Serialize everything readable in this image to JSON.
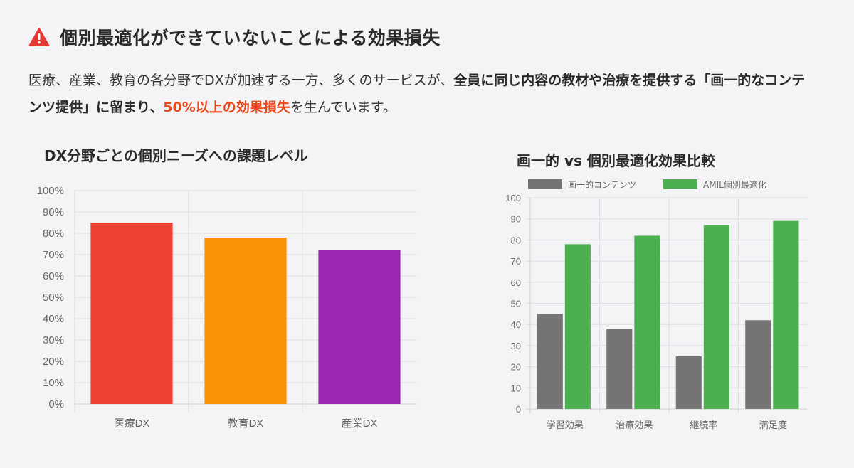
{
  "header": {
    "title": "個別最適化ができていないことによる効果損失",
    "icon": "warning-triangle-icon",
    "icon_color": "#e53935"
  },
  "description": {
    "part1": "医療、産業、教育の各分野でDXが加速する一方、多くのサービスが、",
    "part2": "全員に同じ内容の教材や治療を提供する「画一的なコンテンツ提供」に留まり、",
    "part3": "50%以上の効果損失",
    "part4": "を生んでいます。",
    "highlight_color": "#e8491d"
  },
  "chart_data": [
    {
      "type": "bar",
      "title": "DX分野ごとの個別ニーズへの課題レベル",
      "categories": [
        "医療DX",
        "教育DX",
        "産業DX"
      ],
      "values": [
        85,
        78,
        72
      ],
      "colors": [
        "#ee4035",
        "#f89406",
        "#9c27b0"
      ],
      "yticks": [
        "0%",
        "10%",
        "20%",
        "30%",
        "40%",
        "50%",
        "60%",
        "70%",
        "80%",
        "90%",
        "100%"
      ],
      "ylim": [
        0,
        100
      ],
      "grid": true
    },
    {
      "type": "bar",
      "title": "画一的 vs 個別最適化効果比較",
      "categories": [
        "学習効果",
        "治療効果",
        "継続率",
        "満足度"
      ],
      "series": [
        {
          "name": "画一的コンテンツ",
          "values": [
            45,
            38,
            25,
            42
          ],
          "color": "#757374"
        },
        {
          "name": "AMIL個別最適化",
          "values": [
            78,
            82,
            87,
            89
          ],
          "color": "#4caf50"
        }
      ],
      "yticks": [
        "0",
        "10",
        "20",
        "30",
        "40",
        "50",
        "60",
        "70",
        "80",
        "90",
        "100"
      ],
      "ylim": [
        0,
        100
      ],
      "legend": "top",
      "grid": true
    }
  ]
}
